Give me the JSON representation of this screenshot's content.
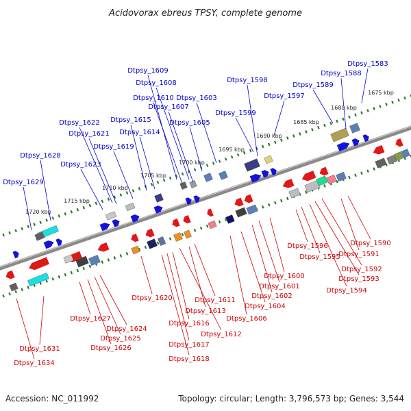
{
  "title": "Acidovorax ebreus TPSY, complete genome",
  "footer": {
    "accession": "Accession: NC_011992",
    "summary": "Topology: circular; Length: 3,796,573 bp; Genes: 3,544"
  },
  "colors": {
    "forward_label": "#0000cc",
    "reverse_label": "#cc0000",
    "backbone": "#777777",
    "tick": "#2a7a2a"
  },
  "scale_labels": [
    "1675 kbp",
    "1680 kbp",
    "1685 kbp",
    "1690 kbp",
    "1695 kbp",
    "1700 kbp",
    "1705 kbp",
    "1710 kbp",
    "1715 kbp",
    "1720 kbp"
  ],
  "genes_top": [
    "Dtpsy_1583",
    "Dtpsy_1588",
    "Dtpsy_1589",
    "Dtpsy_1597",
    "Dtpsy_1598",
    "Dtpsy_1599",
    "Dtpsy_1603",
    "Dtpsy_1605",
    "Dtpsy_1607",
    "Dtpsy_1610",
    "Dtpsy_1608",
    "Dtpsy_1609",
    "Dtpsy_1614",
    "Dtpsy_1615",
    "Dtpsy_1619",
    "Dtpsy_1621",
    "Dtpsy_1622",
    "Dtpsy_1623",
    "Dtpsy_1628",
    "Dtpsy_1629"
  ],
  "genes_bottom": [
    "Dtpsy_1590",
    "Dtpsy_1591",
    "Dtpsy_1592",
    "Dtpsy_1593",
    "Dtpsy_1594",
    "Dtpsy_1595",
    "Dtpsy_1596",
    "Dtpsy_1600",
    "Dtpsy_1601",
    "Dtpsy_1602",
    "Dtpsy_1604",
    "Dtpsy_1606",
    "Dtpsy_1611",
    "Dtpsy_1613",
    "Dtpsy_1612",
    "Dtpsy_1616",
    "Dtpsy_1617",
    "Dtpsy_1618",
    "Dtpsy_1620",
    "Dtpsy_1624",
    "Dtpsy_1625",
    "Dtpsy_1626",
    "Dtpsy_1627",
    "Dtpsy_1631",
    "Dtpsy_1634"
  ]
}
